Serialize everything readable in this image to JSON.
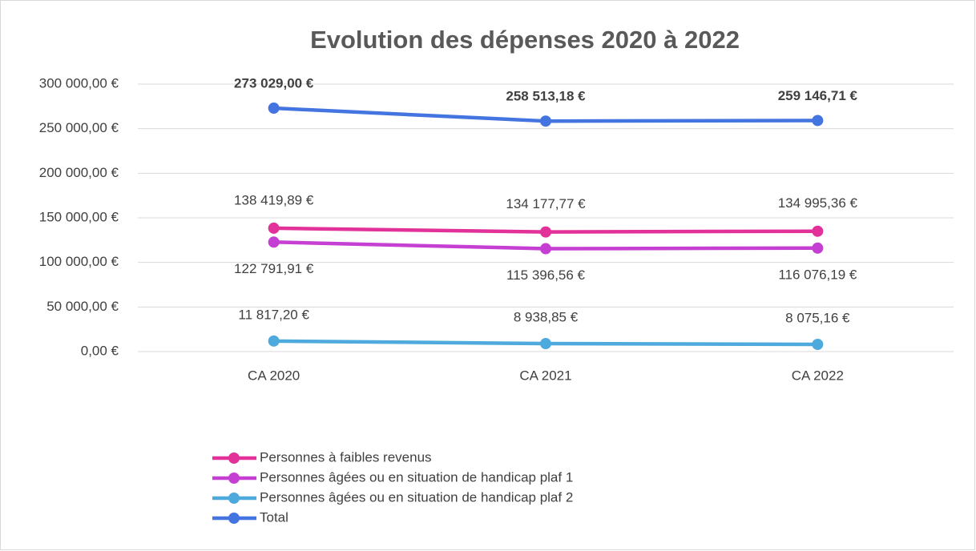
{
  "chart_data": {
    "type": "line",
    "title": "Evolution des dépenses 2020 à 2022",
    "categories": [
      "CA 2020",
      "CA 2021",
      "CA 2022"
    ],
    "series": [
      {
        "name": "Personnes à faibles revenus",
        "color": "#e2329a",
        "values": [
          138419.89,
          134177.77,
          134995.36
        ],
        "value_labels": [
          "138 419,89 €",
          "134 177,77 €",
          "134 995,36 €"
        ]
      },
      {
        "name": "Personnes âgées ou en situation de handicap plaf 1",
        "color": "#c540d2",
        "values": [
          122791.91,
          115396.56,
          116076.19
        ],
        "value_labels": [
          "122 791,91 €",
          "115 396,56 €",
          "116 076,19 €"
        ]
      },
      {
        "name": "Personnes âgées ou en situation de handicap plaf 2",
        "color": "#4ea9dd",
        "values": [
          11817.2,
          8938.85,
          8075.16
        ],
        "value_labels": [
          "11 817,20 €",
          "8 938,85 €",
          "8 075,16 €"
        ]
      },
      {
        "name": "Total",
        "color": "#4474e0",
        "values": [
          273029.0,
          258513.18,
          259146.71
        ],
        "value_labels": [
          "273 029,00 €",
          "258 513,18 €",
          "259 146,71 €"
        ]
      }
    ],
    "ylim": [
      0,
      300000
    ],
    "yticks": [
      {
        "value": 0,
        "label": "0,00 €"
      },
      {
        "value": 50000,
        "label": "50 000,00 €"
      },
      {
        "value": 100000,
        "label": "100 000,00 €"
      },
      {
        "value": 150000,
        "label": "150 000,00 €"
      },
      {
        "value": 200000,
        "label": "200 000,00 €"
      },
      {
        "value": 250000,
        "label": "250 000,00 €"
      },
      {
        "value": 300000,
        "label": "300 000,00 €"
      }
    ],
    "grid": true,
    "legend": "bottom-left"
  }
}
